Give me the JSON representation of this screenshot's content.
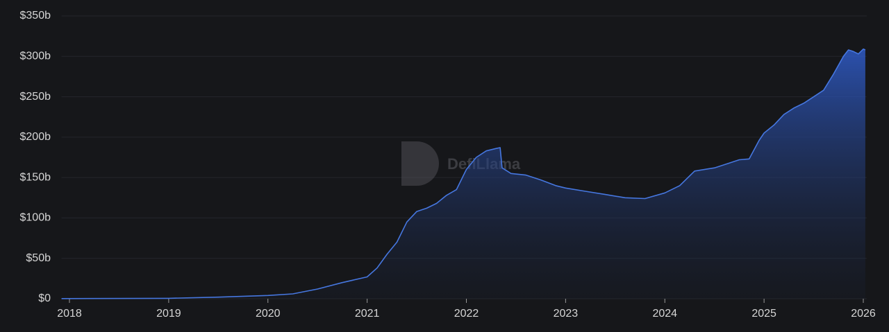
{
  "chart_data": {
    "type": "area",
    "watermark": "DefiLlama",
    "color": "#4677e0",
    "grid": true,
    "xlim": [
      2017.92,
      2026.02
    ],
    "xticks": [
      2018,
      2019,
      2020,
      2021,
      2022,
      2023,
      2024,
      2025,
      2026
    ],
    "ylim": [
      0,
      350
    ],
    "yticks": [
      {
        "value": 0,
        "label": "$0"
      },
      {
        "value": 50,
        "label": "$50b"
      },
      {
        "value": 100,
        "label": "$100b"
      },
      {
        "value": 150,
        "label": "$150b"
      },
      {
        "value": 200,
        "label": "$200b"
      },
      {
        "value": 250,
        "label": "$250b"
      },
      {
        "value": 300,
        "label": "$300b"
      },
      {
        "value": 350,
        "label": "$350b"
      }
    ],
    "x": [
      2017.92,
      2019.0,
      2019.5,
      2020.0,
      2020.25,
      2020.5,
      2020.75,
      2021.0,
      2021.1,
      2021.2,
      2021.3,
      2021.4,
      2021.5,
      2021.6,
      2021.7,
      2021.8,
      2021.9,
      2022.0,
      2022.1,
      2022.2,
      2022.3,
      2022.34,
      2022.36,
      2022.45,
      2022.6,
      2022.75,
      2022.9,
      2023.0,
      2023.2,
      2023.4,
      2023.6,
      2023.8,
      2024.0,
      2024.15,
      2024.3,
      2024.5,
      2024.65,
      2024.75,
      2024.85,
      2024.95,
      2025.0,
      2025.1,
      2025.2,
      2025.3,
      2025.4,
      2025.5,
      2025.6,
      2025.7,
      2025.8,
      2025.85,
      2025.9,
      2025.95,
      2026.0,
      2026.02
    ],
    "values": [
      0.2,
      0.5,
      2,
      4,
      6,
      12,
      20,
      27,
      38,
      55,
      70,
      95,
      108,
      112,
      118,
      128,
      135,
      160,
      175,
      183,
      186,
      187,
      162,
      155,
      153,
      147,
      140,
      137,
      133,
      129,
      125,
      124,
      131,
      140,
      158,
      162,
      168,
      172,
      173,
      196,
      205,
      215,
      228,
      236,
      242,
      250,
      258,
      278,
      300,
      308,
      306,
      303,
      309,
      308
    ]
  }
}
